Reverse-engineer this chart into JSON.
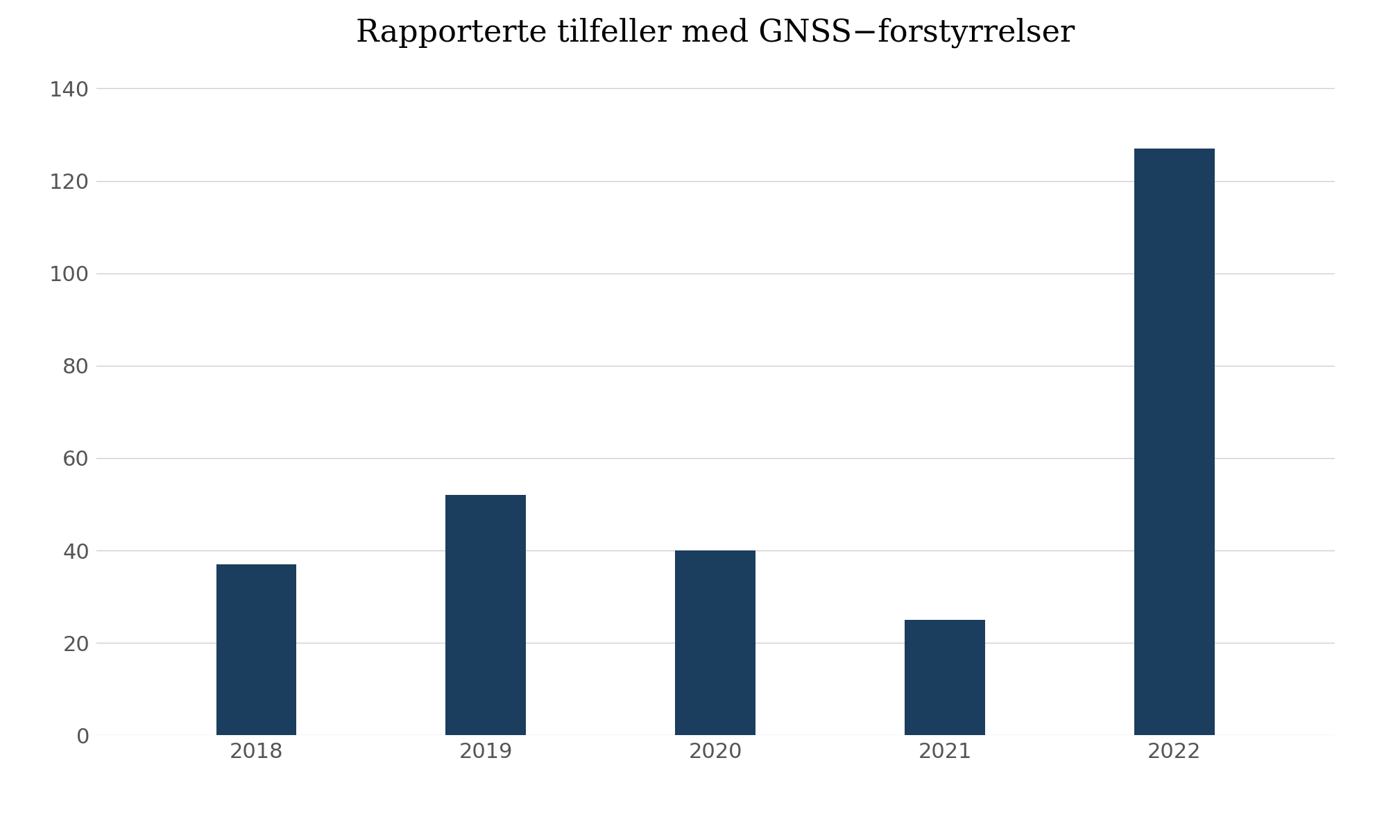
{
  "title": "Rapporterte tilfeller med GNSS−forstyrrelser",
  "categories": [
    "2018",
    "2019",
    "2020",
    "2021",
    "2022"
  ],
  "values": [
    37,
    52,
    40,
    25,
    127
  ],
  "bar_color": "#1b3d5e",
  "background_color": "#ffffff",
  "ylim": [
    0,
    145
  ],
  "yticks": [
    0,
    20,
    40,
    60,
    80,
    100,
    120,
    140
  ],
  "title_fontsize": 32,
  "tick_fontsize": 22,
  "grid_color": "#d0d0d0",
  "bar_width": 0.35
}
